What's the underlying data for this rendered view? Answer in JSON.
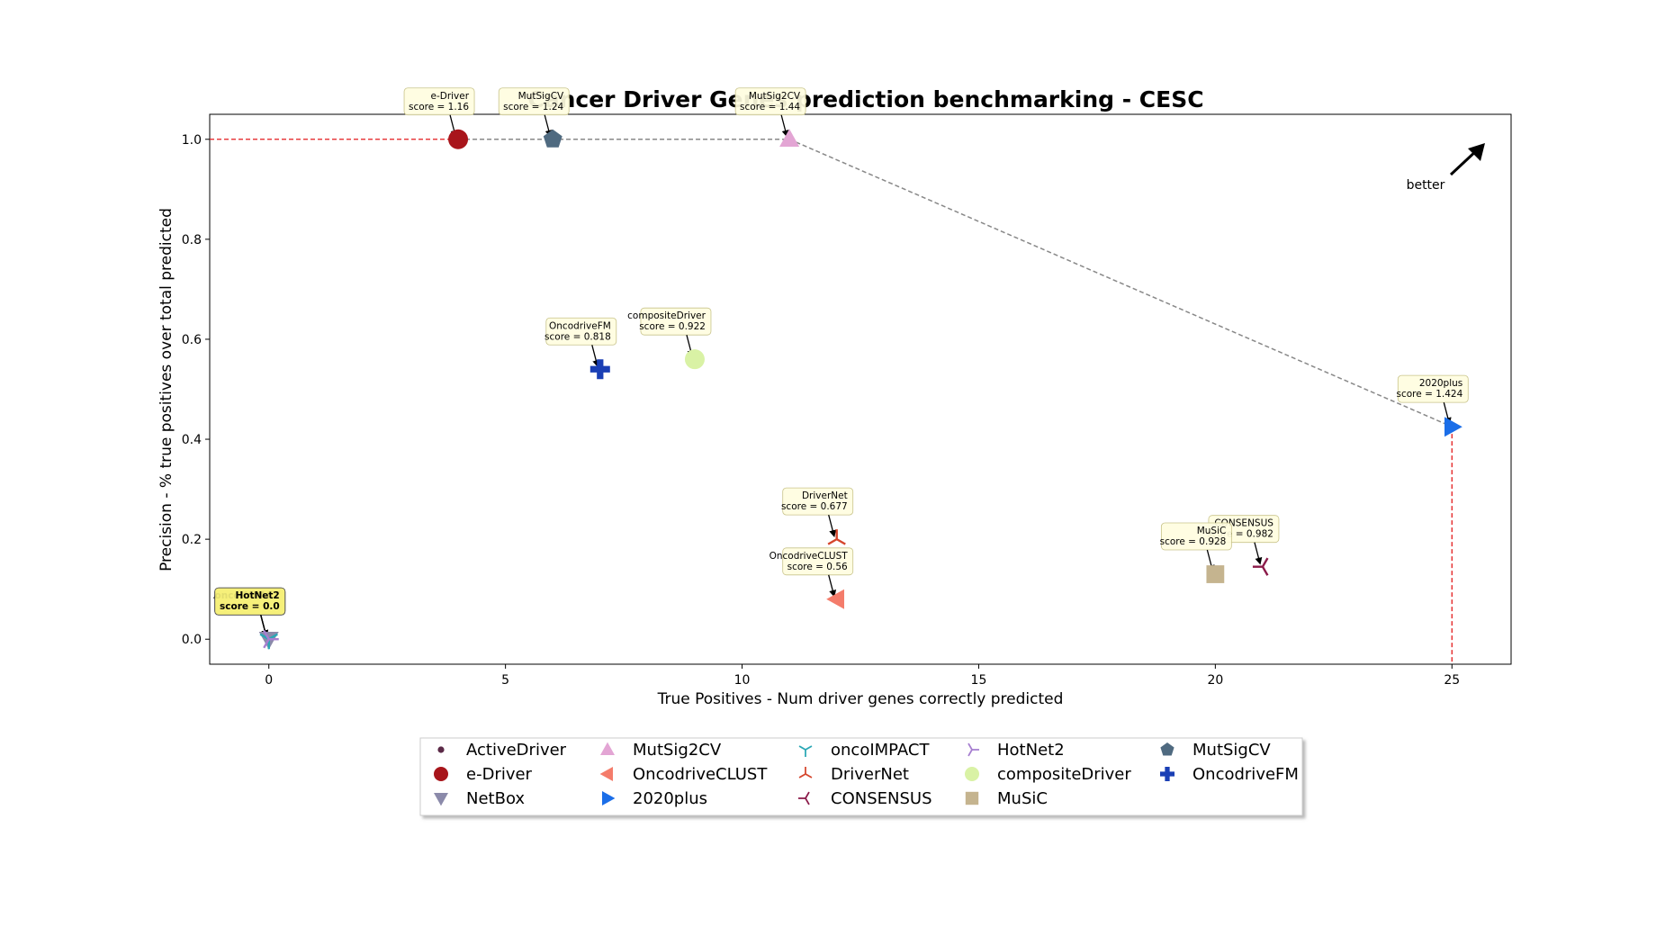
{
  "chart_data": {
    "type": "scatter",
    "title": "Cancer Driver Genes prediction benchmarking - CESC",
    "xlabel": "True Positives - Num driver genes correctly predicted",
    "ylabel": "Precision - % true positives over total predicted",
    "xlim": [
      -1.25,
      26.25
    ],
    "ylim": [
      -0.05,
      1.05
    ],
    "xticks": [
      0,
      5,
      10,
      15,
      20,
      25
    ],
    "yticks": [
      0.0,
      0.2,
      0.4,
      0.6,
      0.8,
      1.0
    ],
    "grid": false,
    "legend_position": "bottom-center",
    "better_label": "better",
    "series": [
      {
        "name": "ActiveDriver",
        "marker": "dot",
        "color": "#5b2a47",
        "x": 0,
        "y": 0.0,
        "score": "score = 0.0"
      },
      {
        "name": "e-Driver",
        "marker": "circle",
        "color": "#a8151b",
        "x": 4,
        "y": 1.0,
        "score": "score = 1.16"
      },
      {
        "name": "NetBox",
        "marker": "triangle-down",
        "color": "#8b8aaa",
        "x": 0,
        "y": 0.0,
        "score": "score = 0.0"
      },
      {
        "name": "MutSig2CV",
        "marker": "triangle-up",
        "color": "#e3a5d4",
        "x": 11,
        "y": 1.0,
        "score": "score = 1.44"
      },
      {
        "name": "OncodriveCLUST",
        "marker": "triangle-left",
        "color": "#f47c6b",
        "x": 12,
        "y": 0.08,
        "score": "score = 0.56"
      },
      {
        "name": "2020plus",
        "marker": "triangle-right",
        "color": "#1b6ee8",
        "x": 25,
        "y": 0.425,
        "score": "score = 1.424"
      },
      {
        "name": "oncoIMPACT",
        "marker": "tri-down",
        "color": "#2aa7b5",
        "x": 0,
        "y": 0.0,
        "score": "score = 0.0"
      },
      {
        "name": "DriverNet",
        "marker": "tri-up",
        "color": "#d5452c",
        "x": 12,
        "y": 0.2,
        "score": "score = 0.677"
      },
      {
        "name": "CONSENSUS",
        "marker": "tri-left",
        "color": "#8b1b4a",
        "x": 21,
        "y": 0.145,
        "score": "score = 0.982"
      },
      {
        "name": "HotNet2",
        "marker": "tri-right",
        "color": "#a67ed0",
        "x": 0,
        "y": 0.0,
        "score": "score = 0.0"
      },
      {
        "name": "compositeDriver",
        "marker": "circle",
        "color": "#d9f2a5",
        "x": 9,
        "y": 0.56,
        "score": "score = 0.922"
      },
      {
        "name": "MuSiC",
        "marker": "square",
        "color": "#c5b48f",
        "x": 20,
        "y": 0.13,
        "score": "score = 0.928"
      },
      {
        "name": "MutSigCV",
        "marker": "pentagon",
        "color": "#4f6a80",
        "x": 6,
        "y": 1.0,
        "score": "score = 1.24"
      },
      {
        "name": "OncodriveFM",
        "marker": "plus",
        "color": "#1a3fb5",
        "x": 7,
        "y": 0.54,
        "score": "score = 0.818"
      }
    ],
    "pareto_front": [
      [
        4,
        1.0
      ],
      [
        6,
        1.0
      ],
      [
        11,
        1.0
      ],
      [
        25,
        0.425
      ]
    ]
  }
}
